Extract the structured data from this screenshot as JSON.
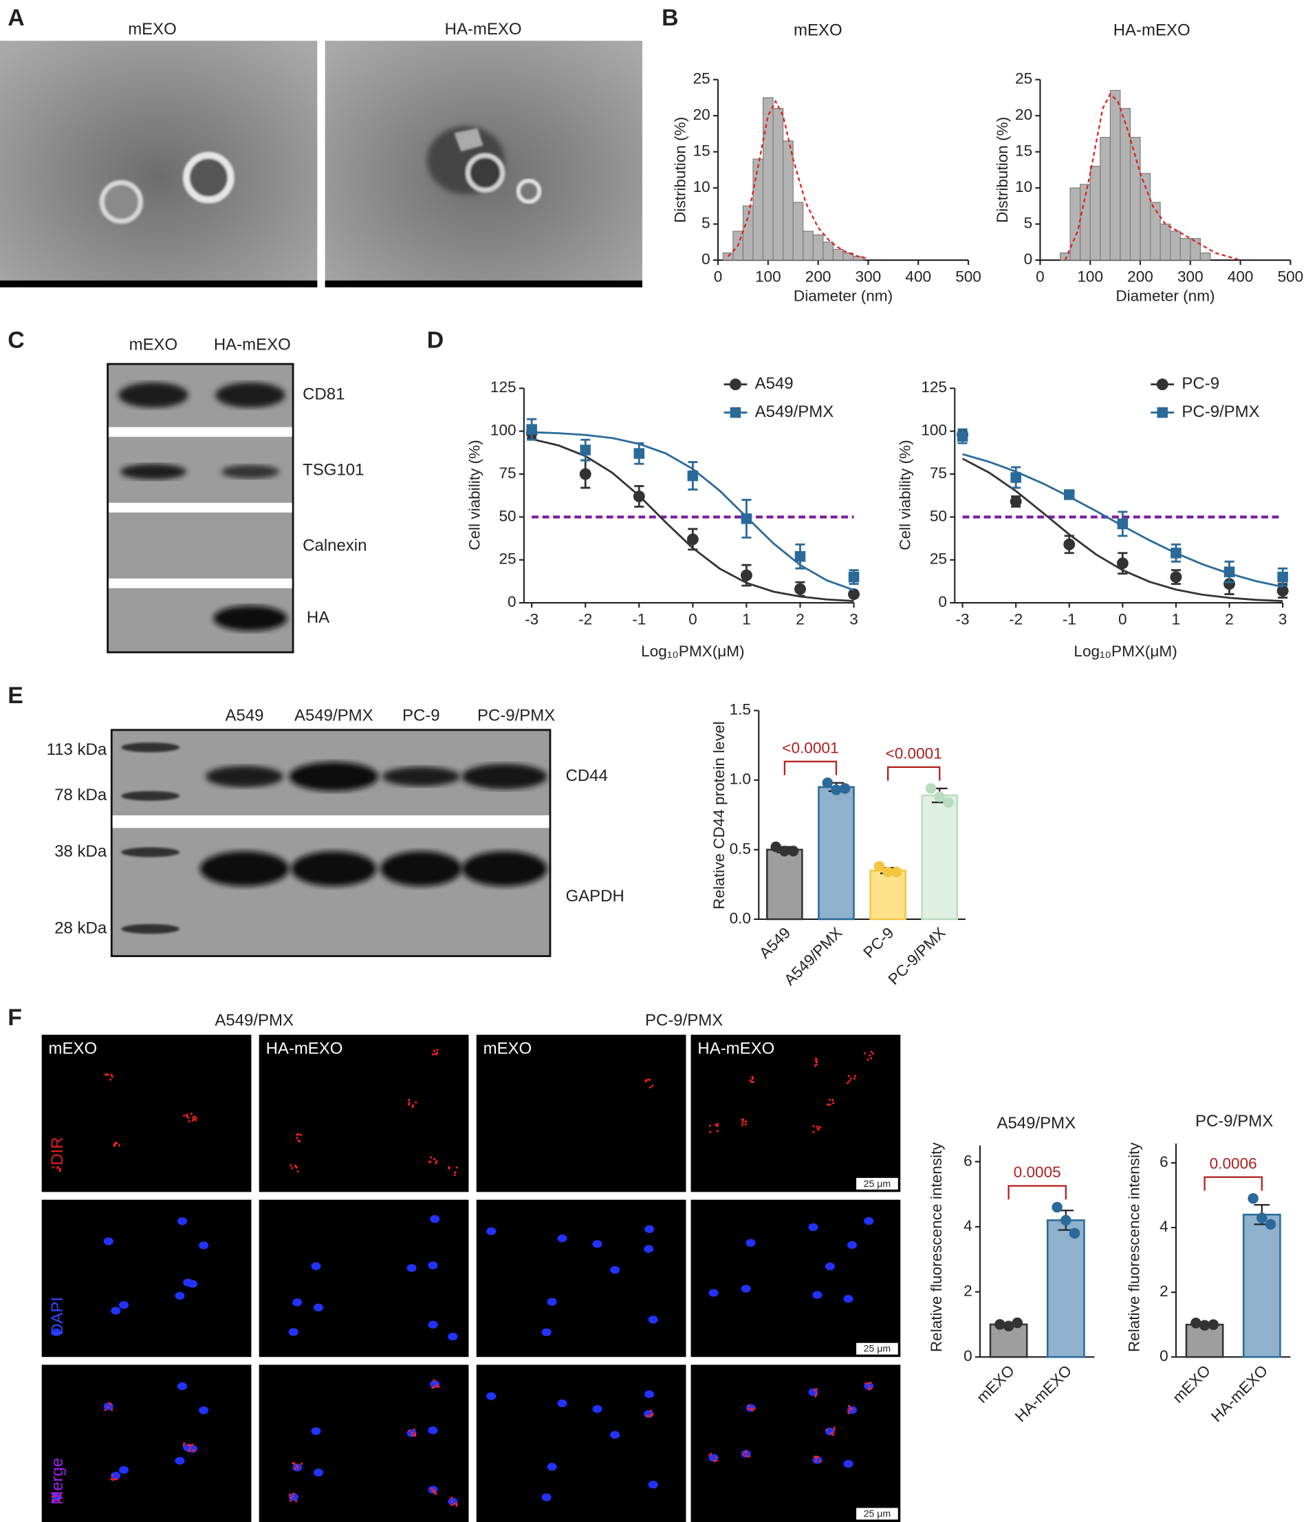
{
  "panel_labels": [
    "A",
    "B",
    "C",
    "D",
    "E",
    "F"
  ],
  "panel_a": {
    "titles": [
      "mEXO",
      "HA-mEXO"
    ]
  },
  "panel_c": {
    "lanes": [
      "mEXO",
      "HA-mEXO"
    ],
    "bands": [
      "CD81",
      "TSG101",
      "Calnexin",
      "HA"
    ]
  },
  "panel_e_blot": {
    "lanes": [
      "A549",
      "A549/PMX",
      "PC-9",
      "PC-9/PMX"
    ],
    "markers": [
      "113 kDa",
      "78 kDa",
      "38 kDa",
      "28 kDa"
    ],
    "bands": [
      "CD44",
      "GAPDH"
    ]
  },
  "panel_f": {
    "groups": [
      "A549/PMX",
      "PC-9/PMX"
    ],
    "columns": [
      "mEXO",
      "HA-mEXO",
      "mEXO",
      "HA-mEXO"
    ],
    "channels": [
      "DIR",
      "DAPI",
      "Merge"
    ],
    "scale_bar": "25 μm"
  },
  "chart_data": [
    {
      "type": "histogram",
      "title": "mEXO",
      "x_label": "Diameter (nm)",
      "y_label": "Distribution (%)",
      "bins": [
        10,
        30,
        50,
        70,
        90,
        110,
        130,
        150,
        170,
        190,
        210,
        230,
        250,
        270,
        290
      ],
      "counts": [
        1,
        4,
        7.5,
        14,
        22.5,
        21,
        16.5,
        8,
        4,
        3.5,
        2.5,
        1.5,
        1,
        0.5
      ],
      "color": "#b3b3b3",
      "fit": {
        "x": [
          20,
          40,
          60,
          80,
          100,
          115,
          130,
          150,
          175,
          200,
          225,
          250,
          275,
          300
        ],
        "values": [
          0.5,
          2,
          6,
          13,
          20,
          22,
          20,
          14,
          8,
          4.5,
          2.5,
          1.3,
          0.6,
          0.2
        ],
        "color": "#e0201b"
      },
      "xlim": [
        0,
        500
      ],
      "xticks": [
        0,
        100,
        200,
        300,
        400,
        500
      ],
      "ylim": [
        0,
        25
      ],
      "yticks": [
        0,
        5,
        10,
        15,
        20,
        25
      ]
    },
    {
      "type": "histogram",
      "title": "HA-mEXO",
      "x_label": "Diameter (nm)",
      "y_label": "Distribution (%)",
      "bins": [
        40,
        60,
        80,
        100,
        120,
        140,
        160,
        180,
        200,
        220,
        240,
        260,
        280,
        300,
        320,
        340
      ],
      "counts": [
        1,
        10,
        10.5,
        13,
        17,
        23.5,
        21,
        17,
        12,
        8,
        5,
        4,
        3,
        3,
        1
      ],
      "color": "#b3b3b3",
      "fit": {
        "x": [
          50,
          75,
          100,
          125,
          140,
          155,
          175,
          200,
          225,
          250,
          275,
          300,
          325,
          350,
          375,
          400
        ],
        "values": [
          0,
          4,
          12,
          21,
          23,
          22,
          18,
          12,
          7.5,
          5,
          4,
          3,
          2,
          1,
          0.5,
          0
        ],
        "color": "#e0201b"
      },
      "xlim": [
        0,
        500
      ],
      "xticks": [
        0,
        100,
        200,
        300,
        400,
        500
      ],
      "ylim": [
        0,
        25
      ],
      "yticks": [
        0,
        5,
        10,
        15,
        20,
        25
      ]
    },
    {
      "type": "line",
      "x_label": "Log₁₀PMX(μM)",
      "y_label": "Cell viability (%)",
      "x": [
        -3,
        -2,
        -1,
        0,
        1,
        2,
        3
      ],
      "fit_x": [
        -3,
        -2.5,
        -2,
        -1.5,
        -1,
        -0.5,
        0,
        0.5,
        1,
        1.5,
        2,
        2.5,
        3
      ],
      "series": [
        {
          "name": "A549",
          "color": "#333333",
          "marker": "circle",
          "values": [
            99,
            75,
            62,
            37,
            16,
            8,
            5
          ],
          "errors": [
            3,
            8,
            6,
            6,
            6,
            4,
            1
          ],
          "fit_values": [
            95.4,
            91.7,
            85.5,
            75.8,
            62.4,
            46.8,
            31.9,
            19.9,
            11.6,
            6.5,
            3.6,
            1.9,
            1.0
          ]
        },
        {
          "name": "A549/PMX",
          "color": "#2a6a9a",
          "marker": "square",
          "values": [
            101,
            89,
            87,
            74,
            49,
            27,
            15
          ],
          "errors": [
            6,
            6,
            6,
            8,
            11,
            7,
            4
          ],
          "fit_values": [
            99.4,
            98.8,
            97.8,
            96.0,
            92.6,
            87.0,
            78.0,
            65.3,
            50,
            34.7,
            22.0,
            13.0,
            7.4
          ]
        }
      ],
      "reference_line": {
        "value": 50,
        "color": "#7b1fa2"
      },
      "xlim": [
        -3,
        3
      ],
      "xticks": [
        -3,
        -2,
        -1,
        0,
        1,
        2,
        3
      ],
      "ylim": [
        0,
        125
      ],
      "yticks": [
        0,
        25,
        50,
        75,
        100,
        125
      ]
    },
    {
      "type": "line",
      "x_label": "Log₁₀PMX(μM)",
      "y_label": "Cell viability (%)",
      "x": [
        -3,
        -2,
        -1,
        0,
        1,
        2,
        3
      ],
      "fit_x": [
        -3,
        -2.5,
        -2,
        -1.5,
        -1,
        -0.5,
        0,
        0.5,
        1,
        1.5,
        2,
        2.5,
        3
      ],
      "series": [
        {
          "name": "PC-9",
          "color": "#333333",
          "marker": "circle",
          "values": [
            98,
            59,
            34,
            23,
            15,
            11,
            7
          ],
          "errors": [
            3,
            3,
            5,
            6,
            4,
            6,
            4
          ],
          "fit_values": [
            84.0,
            75.8,
            65.1,
            52.6,
            39.8,
            28.2,
            19.0,
            12.3,
            7.7,
            4.7,
            2.9,
            1.7,
            1.0
          ]
        },
        {
          "name": "PC-9/PMX",
          "color": "#2a6a9a",
          "marker": "square",
          "values": [
            97,
            73,
            63,
            46,
            29,
            18,
            15
          ],
          "errors": [
            4,
            6,
            2,
            7,
            5,
            6,
            5
          ],
          "fit_values": [
            86.6,
            82.1,
            76.4,
            69.6,
            61.8,
            53.5,
            44.8,
            36.5,
            28.9,
            22.4,
            17.0,
            12.6,
            9.3
          ]
        }
      ],
      "reference_line": {
        "value": 50,
        "color": "#7b1fa2"
      },
      "xlim": [
        -3,
        3
      ],
      "xticks": [
        -3,
        -2,
        -1,
        0,
        1,
        2,
        3
      ],
      "ylim": [
        0,
        125
      ],
      "yticks": [
        0,
        25,
        50,
        75,
        100,
        125
      ]
    },
    {
      "type": "bar",
      "y_label": "Relative CD44 protein level",
      "categories": [
        "A549",
        "A549/PMX",
        "PC-9",
        "PC-9/PMX"
      ],
      "values": [
        0.5,
        0.95,
        0.35,
        0.89
      ],
      "errors": [
        0.02,
        0.03,
        0.02,
        0.05
      ],
      "points": [
        [
          0.52,
          0.49,
          0.49
        ],
        [
          0.98,
          0.93,
          0.94
        ],
        [
          0.38,
          0.34,
          0.34
        ],
        [
          0.94,
          0.88,
          0.84
        ]
      ],
      "colors": [
        "#9e9e9e",
        "#8fb1cc",
        "#fde28a",
        "#dff0e2"
      ],
      "point_colors": [
        "#333333",
        "#2a6a9a",
        "#f5c542",
        "#b9dcc0"
      ],
      "annotations": [
        {
          "label": "<0.0001",
          "between": [
            0,
            1
          ]
        },
        {
          "label": "<0.0001",
          "between": [
            2,
            3
          ]
        }
      ],
      "annotation_color": "#b01c1c",
      "ylim": [
        0,
        1.5
      ],
      "yticks": [
        {
          "value": 0,
          "label": "0.0"
        },
        0.5,
        {
          "value": 1,
          "label": "1.0"
        },
        1.5
      ]
    },
    {
      "type": "bar",
      "title": "A549/PMX",
      "y_label": "Relative fluorescence intensity",
      "categories": [
        "mEXO",
        "HA-mEXO"
      ],
      "values": [
        1.0,
        4.2
      ],
      "errors": [
        0.05,
        0.3
      ],
      "points": [
        [
          1.0,
          0.95,
          1.05
        ],
        [
          4.6,
          4.2,
          3.8
        ]
      ],
      "colors": [
        "#9e9e9e",
        "#8fb1cc"
      ],
      "point_colors": [
        "#333333",
        "#2a6a9a"
      ],
      "annotations": [
        {
          "label": "0.0005",
          "between": [
            0,
            1
          ]
        }
      ],
      "annotation_color": "#b01c1c",
      "ylim": [
        0,
        6.5
      ],
      "yticks": [
        0,
        2,
        4,
        6
      ]
    },
    {
      "type": "bar",
      "title": "PC-9/PMX",
      "y_label": "Relative fluorescence intensity",
      "categories": [
        "mEXO",
        "HA-mEXO"
      ],
      "values": [
        1.0,
        4.4
      ],
      "errors": [
        0.05,
        0.3
      ],
      "points": [
        [
          1.05,
          0.98,
          1.0
        ],
        [
          4.9,
          4.3,
          4.1
        ]
      ],
      "colors": [
        "#9e9e9e",
        "#8fb1cc"
      ],
      "point_colors": [
        "#333333",
        "#2a6a9a"
      ],
      "annotations": [
        {
          "label": "0.0006",
          "between": [
            0,
            1
          ]
        }
      ],
      "annotation_color": "#b01c1c",
      "ylim": [
        0,
        6.6
      ],
      "yticks": [
        0,
        2,
        4,
        6
      ]
    }
  ]
}
